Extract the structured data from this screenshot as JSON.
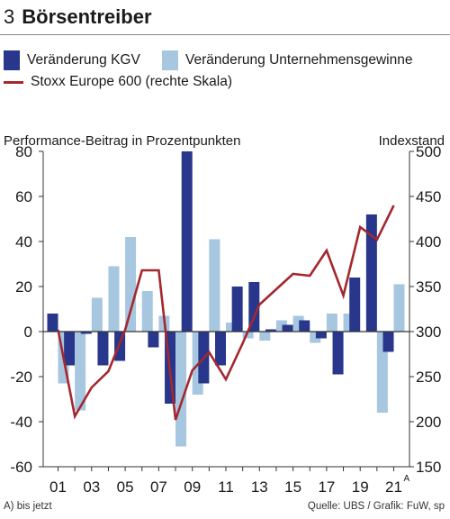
{
  "header": {
    "number": "3",
    "title": "Börsentreiber"
  },
  "legend": [
    {
      "label": "Veränderung KGV",
      "kind": "bar",
      "color": "#28368b"
    },
    {
      "label": "Veränderung Unternehmensgewinne",
      "kind": "bar",
      "color": "#a7c6e0"
    },
    {
      "label": "Stoxx Europe 600 (rechte Skala)",
      "kind": "line",
      "color": "#a3282e"
    }
  ],
  "footer": {
    "note": "A)  bis jetzt",
    "source": "Quelle: UBS / Grafik: FuW, sp"
  },
  "chart_data": {
    "type": "bar",
    "title": "Börsentreiber",
    "ylabel": "Performance-Beitrag in Prozentpunkten",
    "y2label": "Indexstand",
    "ylim": [
      -60,
      80
    ],
    "y2lim": [
      150,
      500
    ],
    "yticks": [
      80,
      60,
      40,
      20,
      0,
      -20,
      -40,
      -60
    ],
    "y2ticks": [
      500,
      450,
      400,
      350,
      300,
      250,
      200,
      150
    ],
    "x": [
      2001,
      2002,
      2003,
      2004,
      2005,
      2006,
      2007,
      2008,
      2009,
      2010,
      2011,
      2012,
      2013,
      2014,
      2015,
      2016,
      2017,
      2018,
      2019,
      2020,
      2021
    ],
    "xtick_labels": [
      "01",
      "03",
      "05",
      "07",
      "09",
      "11",
      "13",
      "15",
      "17",
      "19",
      "21"
    ],
    "xtick_years": [
      2001,
      2003,
      2005,
      2007,
      2009,
      2011,
      2013,
      2015,
      2017,
      2019,
      2021
    ],
    "last_label_superscript": "A",
    "grid": false,
    "series": [
      {
        "name": "Veränderung KGV",
        "type": "bar",
        "color": "#28368b",
        "values": [
          8,
          -15,
          -1,
          -15,
          -13,
          0,
          -7,
          -32,
          80,
          -23,
          -15,
          20,
          22,
          1,
          3,
          5,
          -3,
          -19,
          24,
          52,
          -9
        ]
      },
      {
        "name": "Veränderung Unternehmensgewinne",
        "type": "bar",
        "color": "#a7c6e0",
        "values": [
          -23,
          -35,
          15,
          29,
          42,
          18,
          7,
          -51,
          -28,
          41,
          4,
          -3,
          -4,
          5,
          7,
          -5,
          8,
          8,
          0,
          -36,
          21
        ]
      },
      {
        "name": "Stoxx Europe 600 (rechte Skala)",
        "type": "line",
        "axis": "right",
        "color": "#a3282e",
        "values": [
          302,
          206,
          238,
          256,
          302,
          368,
          368,
          202,
          257,
          277,
          247,
          287,
          330,
          347,
          364,
          362,
          390,
          340,
          416,
          402,
          440
        ]
      }
    ]
  }
}
